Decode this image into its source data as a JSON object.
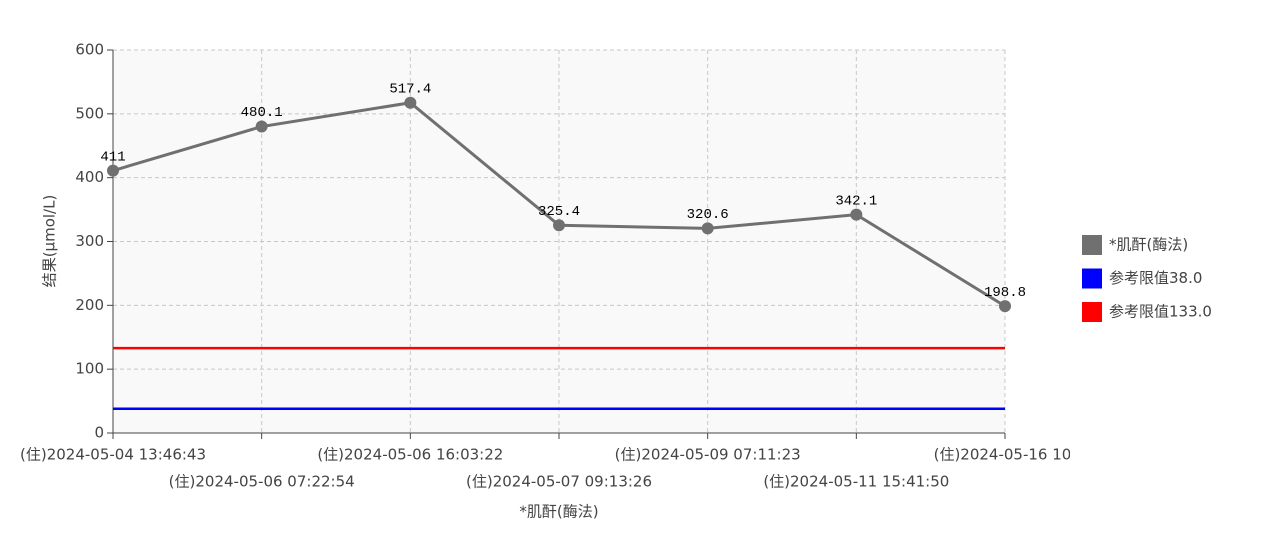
{
  "chart_data": {
    "type": "line",
    "x_label": "*肌酐(酶法)",
    "y_label": "结果(μmol/L)",
    "categories": [
      "(住)2024-05-04 13:46:43",
      "(住)2024-05-06 07:22:54",
      "(住)2024-05-06 16:03:22",
      "(住)2024-05-07 09:13:26",
      "(住)2024-05-09 07:11:23",
      "(住)2024-05-11 15:41:50",
      "(住)2024-05-16 10:"
    ],
    "series": [
      {
        "name": "*肌酐(酶法)",
        "color": "#707070",
        "markers": true,
        "data_labels": true,
        "values": [
          411,
          480.1,
          517.4,
          325.4,
          320.6,
          342.1,
          198.8
        ]
      },
      {
        "name": "参考限值38.0",
        "color": "#0000ff",
        "markers": false,
        "data_labels": false,
        "values": [
          38,
          38,
          38,
          38,
          38,
          38,
          38
        ]
      },
      {
        "name": "参考限值133.0",
        "color": "#ff0000",
        "markers": false,
        "data_labels": false,
        "values": [
          133,
          133,
          133,
          133,
          133,
          133,
          133
        ]
      }
    ],
    "ylim": [
      0,
      600
    ],
    "yticks": [
      0,
      100,
      200,
      300,
      400,
      500,
      600
    ],
    "grid": true,
    "legend": "right"
  }
}
